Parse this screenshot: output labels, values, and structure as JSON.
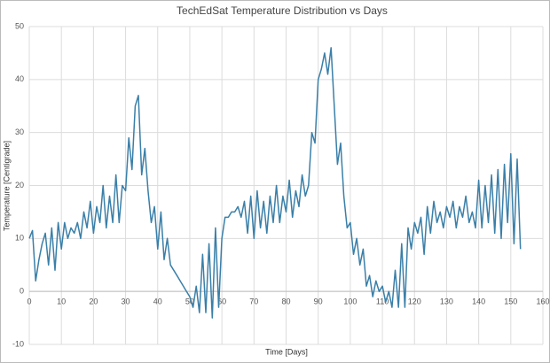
{
  "chart_data": {
    "type": "line",
    "title": "TechEdSat Temperature Distribution vs Days",
    "x_label": "Time [Days]",
    "y_label": "Temperature [Centigrade]",
    "x": [
      0,
      1,
      2,
      3,
      4,
      5,
      6,
      7,
      8,
      9,
      10,
      11,
      12,
      13,
      14,
      15,
      16,
      17,
      18,
      19,
      20,
      21,
      22,
      23,
      24,
      25,
      26,
      27,
      28,
      29,
      30,
      31,
      32,
      33,
      34,
      35,
      36,
      37,
      38,
      39,
      40,
      41,
      42,
      43,
      44,
      45,
      46,
      47,
      48,
      49,
      50,
      51,
      52,
      53,
      54,
      55,
      56,
      57,
      58,
      59,
      60,
      61,
      62,
      63,
      64,
      65,
      66,
      67,
      68,
      69,
      70,
      71,
      72,
      73,
      74,
      75,
      76,
      77,
      78,
      79,
      80,
      81,
      82,
      83,
      84,
      85,
      86,
      87,
      88,
      89,
      90,
      91,
      92,
      93,
      94,
      95,
      96,
      97,
      98,
      99,
      100,
      101,
      102,
      103,
      104,
      105,
      106,
      107,
      108,
      109,
      110,
      111,
      112,
      113,
      114,
      115,
      116,
      117,
      118,
      119,
      120,
      121,
      122,
      123,
      124,
      125,
      126,
      127,
      128,
      129,
      130,
      131,
      132,
      133,
      134,
      135,
      136,
      137,
      138,
      139,
      140,
      141,
      142,
      143,
      144,
      145,
      146,
      147,
      148,
      149,
      150,
      151,
      152,
      153
    ],
    "series": [
      {
        "name": "Temperature",
        "color": "#3a7fa8",
        "values": [
          10,
          11.5,
          2,
          6,
          9,
          11,
          5,
          12,
          4,
          13,
          8,
          13,
          10,
          12,
          11,
          13,
          10,
          15,
          12,
          17,
          11,
          16,
          13,
          20,
          12,
          18,
          13,
          22,
          13,
          20,
          19,
          29,
          23,
          35,
          37,
          22,
          27,
          19,
          13,
          16,
          8,
          15,
          6,
          10,
          5,
          4,
          3,
          2,
          1,
          0,
          -1,
          -3,
          1,
          -4,
          7,
          -4,
          9,
          -5,
          12,
          -3,
          10,
          14,
          14,
          15,
          15,
          16,
          14,
          17,
          11,
          18,
          10,
          19,
          12,
          17,
          11,
          18,
          13,
          20,
          13,
          18,
          15,
          21,
          14,
          19,
          16,
          22,
          18,
          20,
          30,
          28,
          40,
          42,
          45,
          41,
          46,
          35,
          24,
          28,
          18,
          12,
          13,
          7,
          10,
          5,
          8,
          1,
          3,
          -1,
          2,
          0,
          1,
          -2,
          0,
          -3,
          4,
          -3,
          9,
          -3,
          12,
          8,
          13,
          11,
          14,
          7,
          16,
          11,
          17,
          13,
          15,
          12,
          16,
          14,
          17,
          12,
          16,
          14,
          18,
          13,
          15,
          12,
          21,
          12,
          20,
          13,
          22,
          11,
          23,
          10,
          24,
          13,
          26,
          9,
          25,
          8
        ]
      }
    ],
    "xlim": [
      0,
      160
    ],
    "xticks": [
      0,
      10,
      20,
      30,
      40,
      50,
      60,
      70,
      80,
      90,
      100,
      110,
      120,
      130,
      140,
      150,
      160
    ],
    "ylim": [
      -10,
      50
    ],
    "yticks": [
      -10,
      0,
      10,
      20,
      30,
      40,
      50
    ],
    "grid": true
  }
}
